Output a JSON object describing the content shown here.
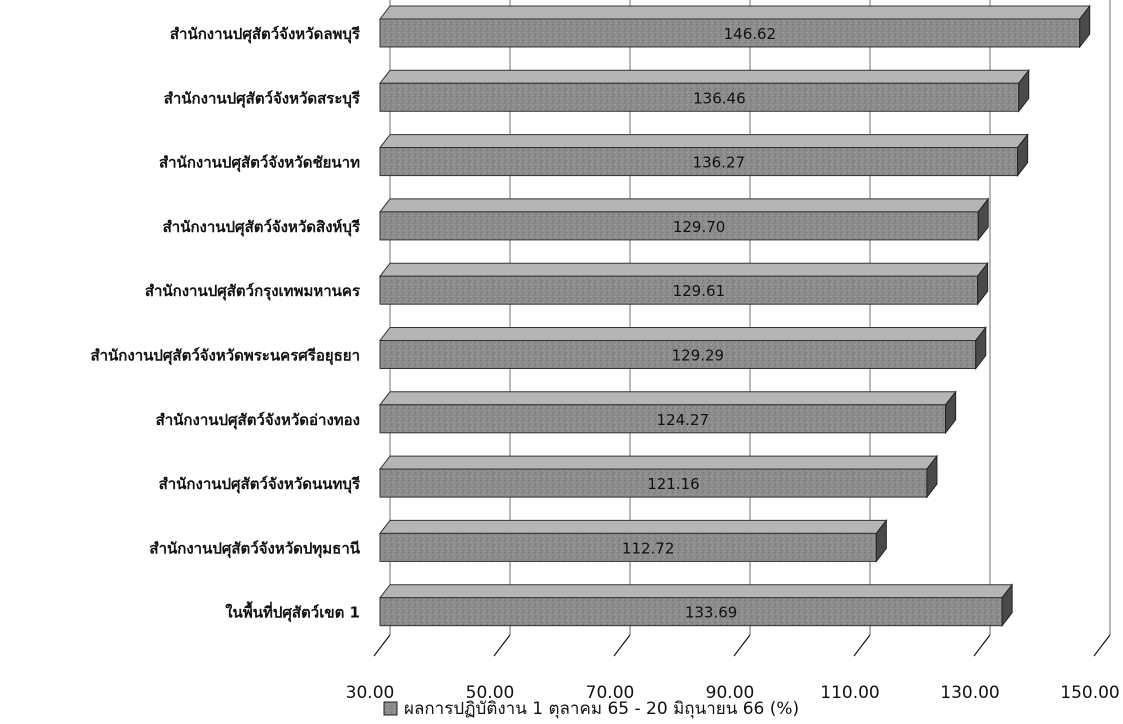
{
  "chart_data": {
    "type": "bar",
    "orientation": "horizontal",
    "categories": [
      "สำนักงานปศุสัตว์จังหวัดลพบุรี",
      "สำนักงานปศุสัตว์จังหวัดสระบุรี",
      "สำนักงานปศุสัตว์จังหวัดชัยนาท",
      "สำนักงานปศุสัตว์จังหวัดสิงห์บุรี",
      "สำนักงานปศุสัตว์กรุงเทพมหานคร",
      "สำนักงานปศุสัตว์จังหวัดพระนครศรีอยุธยา",
      "สำนักงานปศุสัตว์จังหวัดอ่างทอง",
      "สำนักงานปศุสัตว์จังหวัดนนทบุรี",
      "สำนักงานปศุสัตว์จังหวัดปทุมธานี",
      "ในพื้นที่ปศุสัตว์เขต 1"
    ],
    "series": [
      {
        "name": "ผลการปฏิบัติงาน 1 ตุลาคม 65 - 20 มิถุนายน 66 (%)",
        "values": [
          146.62,
          136.46,
          136.27,
          129.7,
          129.61,
          129.29,
          124.27,
          121.16,
          112.72,
          133.69
        ],
        "labels": [
          "146.62",
          "136.46",
          "136.27",
          "129.70",
          "129.61",
          "129.29",
          "124.27",
          "121.16",
          "112.72",
          "133.69"
        ]
      }
    ],
    "xlim": [
      30,
      150
    ],
    "x_ticks": [
      "30.00",
      "50.00",
      "70.00",
      "90.00",
      "110.00",
      "130.00",
      "150.00"
    ],
    "xlabel": "",
    "ylabel": "",
    "title": "",
    "grid": true,
    "style": "3d",
    "legend_position": "bottom",
    "colors": {
      "bar_front": "#8c8c8c",
      "bar_top": "#b5b5b5",
      "bar_side": "#4a4a4a",
      "grid": "#6f6f6f",
      "text": "#111111"
    }
  }
}
